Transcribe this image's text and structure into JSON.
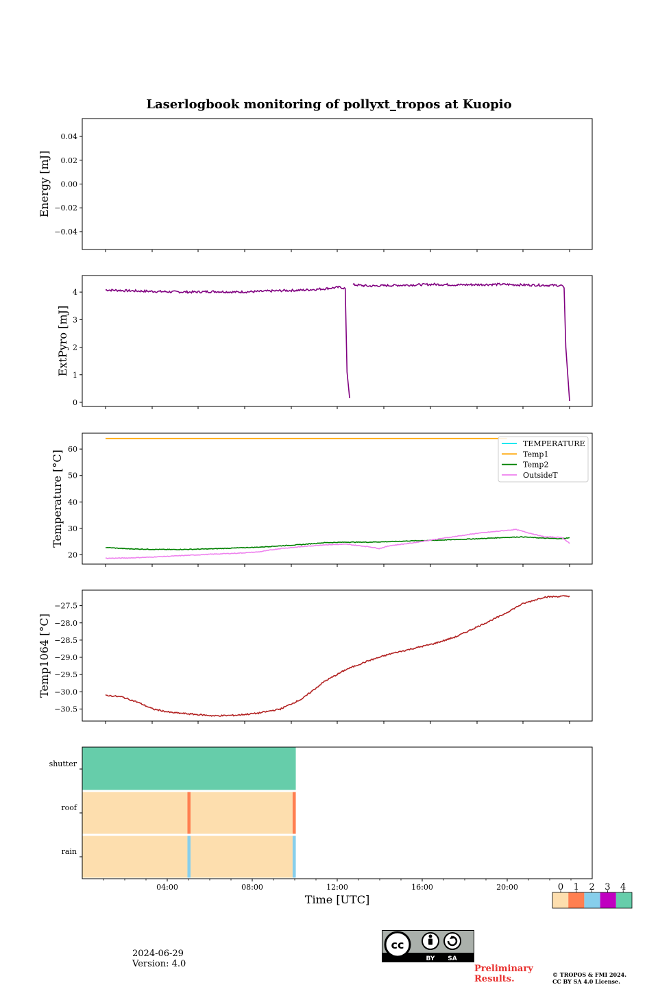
{
  "title": "Laserlogbook monitoring of pollyxt_tropos at Kuopio",
  "footer": {
    "date": "2024-06-29",
    "version": "Version: 4.0",
    "preliminary": "Preliminary Results.",
    "copyright_line1": "© TROPOS & FMI 2024.",
    "copyright_line2": "CC BY SA 4.0 License.",
    "cc_by": "BY",
    "cc_sa": "SA"
  },
  "colors": {
    "extpyro": "#800080",
    "temperature": "#00e5ee",
    "temp1": "#ffa500",
    "temp2": "#008000",
    "outside": "#ee82ee",
    "temp1064": "#b22222",
    "status": [
      "#fddeae",
      "#ff7f50",
      "#87ceeb",
      "#c000c0",
      "#66cdaa"
    ]
  },
  "chart_data": [
    {
      "type": "line",
      "id": "energy",
      "ylabel": "Energy [mJ]",
      "ylim": [
        -0.055,
        0.055
      ],
      "yticks": [
        0.04,
        0.02,
        0.0,
        -0.02,
        -0.04
      ],
      "ytick_labels": [
        "0.04",
        "0.02",
        "0.00",
        "−0.02",
        "−0.04"
      ],
      "series": []
    },
    {
      "type": "line",
      "id": "extpyro",
      "ylabel": "ExtPyro [mJ]",
      "ylim": [
        -0.15,
        4.6
      ],
      "yticks": [
        0,
        1,
        2,
        3,
        4
      ],
      "ytick_labels": [
        "0",
        "1",
        "2",
        "3",
        "4"
      ],
      "series": [
        {
          "color_key": "extpyro",
          "noise": 0.04,
          "points": [
            [
              1.05,
              4.08
            ],
            [
              2,
              4.05
            ],
            [
              3,
              4.03
            ],
            [
              4,
              4.01
            ],
            [
              5,
              4.0
            ],
            [
              6,
              4.02
            ],
            [
              7,
              4.0
            ],
            [
              8,
              4.02
            ],
            [
              9,
              4.05
            ],
            [
              10,
              4.07
            ],
            [
              11,
              4.12
            ],
            [
              11.7,
              4.18
            ],
            [
              11.95,
              4.13
            ],
            [
              12.03,
              1.1
            ],
            [
              12.15,
              0.15
            ]
          ]
        },
        {
          "color_key": "extpyro",
          "noise": 0.04,
          "points": [
            [
              12.3,
              4.27
            ],
            [
              13,
              4.22
            ],
            [
              14,
              4.24
            ],
            [
              15,
              4.26
            ],
            [
              16,
              4.28
            ],
            [
              17,
              4.26
            ],
            [
              18,
              4.27
            ],
            [
              19,
              4.28
            ],
            [
              20,
              4.26
            ],
            [
              21,
              4.25
            ],
            [
              21.8,
              4.24
            ],
            [
              21.9,
              4.15
            ],
            [
              21.98,
              2.0
            ],
            [
              22.15,
              0.05
            ]
          ]
        }
      ]
    },
    {
      "type": "line",
      "id": "temperature",
      "ylabel": "Temperature [°C]",
      "ylim": [
        16.5,
        66
      ],
      "yticks": [
        20,
        30,
        40,
        50,
        60
      ],
      "ytick_labels": [
        "20",
        "30",
        "40",
        "50",
        "60"
      ],
      "legend_position": "upper-right",
      "legend": [
        {
          "label": "TEMPERATURE",
          "color_key": "temperature"
        },
        {
          "label": "Temp1",
          "color_key": "temp1"
        },
        {
          "label": "Temp2",
          "color_key": "temp2"
        },
        {
          "label": "OutsideT",
          "color_key": "outside"
        }
      ],
      "series": [
        {
          "name": "Temp1",
          "color_key": "temp1",
          "noise": 0,
          "points": [
            [
              1.05,
              64
            ],
            [
              19.3,
              64
            ]
          ]
        },
        {
          "name": "Temp2",
          "color_key": "temp2",
          "noise": 0.12,
          "points": [
            [
              1.05,
              22.8
            ],
            [
              2,
              22.3
            ],
            [
              3,
              22.1
            ],
            [
              4,
              22.0
            ],
            [
              5,
              22.1
            ],
            [
              6,
              22.3
            ],
            [
              7,
              22.6
            ],
            [
              8,
              22.9
            ],
            [
              9,
              23.4
            ],
            [
              10,
              23.9
            ],
            [
              11,
              24.6
            ],
            [
              12,
              24.8
            ],
            [
              13,
              24.8
            ],
            [
              14,
              25.0
            ],
            [
              15,
              25.3
            ],
            [
              16,
              25.5
            ],
            [
              17,
              25.8
            ],
            [
              18,
              26.1
            ],
            [
              19,
              26.5
            ],
            [
              20,
              26.8
            ],
            [
              21,
              26.3
            ],
            [
              21.8,
              26.1
            ],
            [
              22.15,
              26.5
            ]
          ]
        },
        {
          "name": "OutsideT",
          "color_key": "outside",
          "noise": 0.12,
          "points": [
            [
              1.05,
              18.7
            ],
            [
              2,
              18.8
            ],
            [
              3,
              19.1
            ],
            [
              4,
              19.5
            ],
            [
              5,
              19.9
            ],
            [
              6,
              20.3
            ],
            [
              7,
              20.6
            ],
            [
              8,
              21.1
            ],
            [
              9,
              22.4
            ],
            [
              10,
              23.1
            ],
            [
              11,
              23.8
            ],
            [
              12,
              24.0
            ],
            [
              13,
              23.1
            ],
            [
              13.5,
              22.4
            ],
            [
              14,
              23.5
            ],
            [
              15,
              24.5
            ],
            [
              16,
              25.8
            ],
            [
              17,
              27.0
            ],
            [
              18,
              28.2
            ],
            [
              19,
              29.0
            ],
            [
              19.7,
              29.6
            ],
            [
              20.2,
              28.5
            ],
            [
              21,
              26.8
            ],
            [
              21.8,
              26.6
            ],
            [
              22.15,
              24.3
            ]
          ]
        }
      ]
    },
    {
      "type": "line",
      "id": "temp1064",
      "ylabel": "Temp1064 [°C]",
      "ylim": [
        -30.85,
        -27.05
      ],
      "yticks": [
        -27.5,
        -28.0,
        -28.5,
        -29.0,
        -29.5,
        -30.0,
        -30.5
      ],
      "ytick_labels": [
        "−27.5",
        "−28.0",
        "−28.5",
        "−29.0",
        "−29.5",
        "−30.0",
        "−30.5"
      ],
      "series": [
        {
          "color_key": "temp1064",
          "noise": 0.02,
          "points": [
            [
              1.05,
              -30.1
            ],
            [
              1.8,
              -30.15
            ],
            [
              2.5,
              -30.3
            ],
            [
              3.2,
              -30.5
            ],
            [
              4,
              -30.6
            ],
            [
              5,
              -30.65
            ],
            [
              6,
              -30.7
            ],
            [
              7,
              -30.68
            ],
            [
              8,
              -30.62
            ],
            [
              9,
              -30.5
            ],
            [
              10,
              -30.2
            ],
            [
              11,
              -29.7
            ],
            [
              12,
              -29.35
            ],
            [
              13,
              -29.1
            ],
            [
              14,
              -28.9
            ],
            [
              15,
              -28.75
            ],
            [
              16,
              -28.6
            ],
            [
              17,
              -28.4
            ],
            [
              18,
              -28.1
            ],
            [
              19,
              -27.8
            ],
            [
              20,
              -27.45
            ],
            [
              21,
              -27.25
            ],
            [
              22.15,
              -27.22
            ]
          ]
        }
      ]
    },
    {
      "type": "heatmap",
      "id": "status",
      "rows": [
        "shutter",
        "roof",
        "rain"
      ],
      "xlabel": "Time [UTC]",
      "xlim": [
        0,
        24
      ],
      "xticks": [
        4,
        8,
        12,
        16,
        20
      ],
      "xtick_labels": [
        "04:00",
        "08:00",
        "12:00",
        "16:00",
        "20:00"
      ],
      "segments": {
        "shutter": [
          [
            0,
            10.05,
            4
          ]
        ],
        "roof": [
          [
            0,
            4.95,
            0
          ],
          [
            4.95,
            5.1,
            1
          ],
          [
            5.1,
            9.9,
            0
          ],
          [
            9.9,
            10.05,
            1
          ]
        ],
        "rain": [
          [
            0,
            4.95,
            0
          ],
          [
            4.95,
            5.1,
            2
          ],
          [
            5.1,
            9.9,
            0
          ],
          [
            9.9,
            10.05,
            2
          ]
        ]
      },
      "colorbar_labels": [
        "0",
        "1",
        "2",
        "3",
        "4"
      ]
    }
  ]
}
